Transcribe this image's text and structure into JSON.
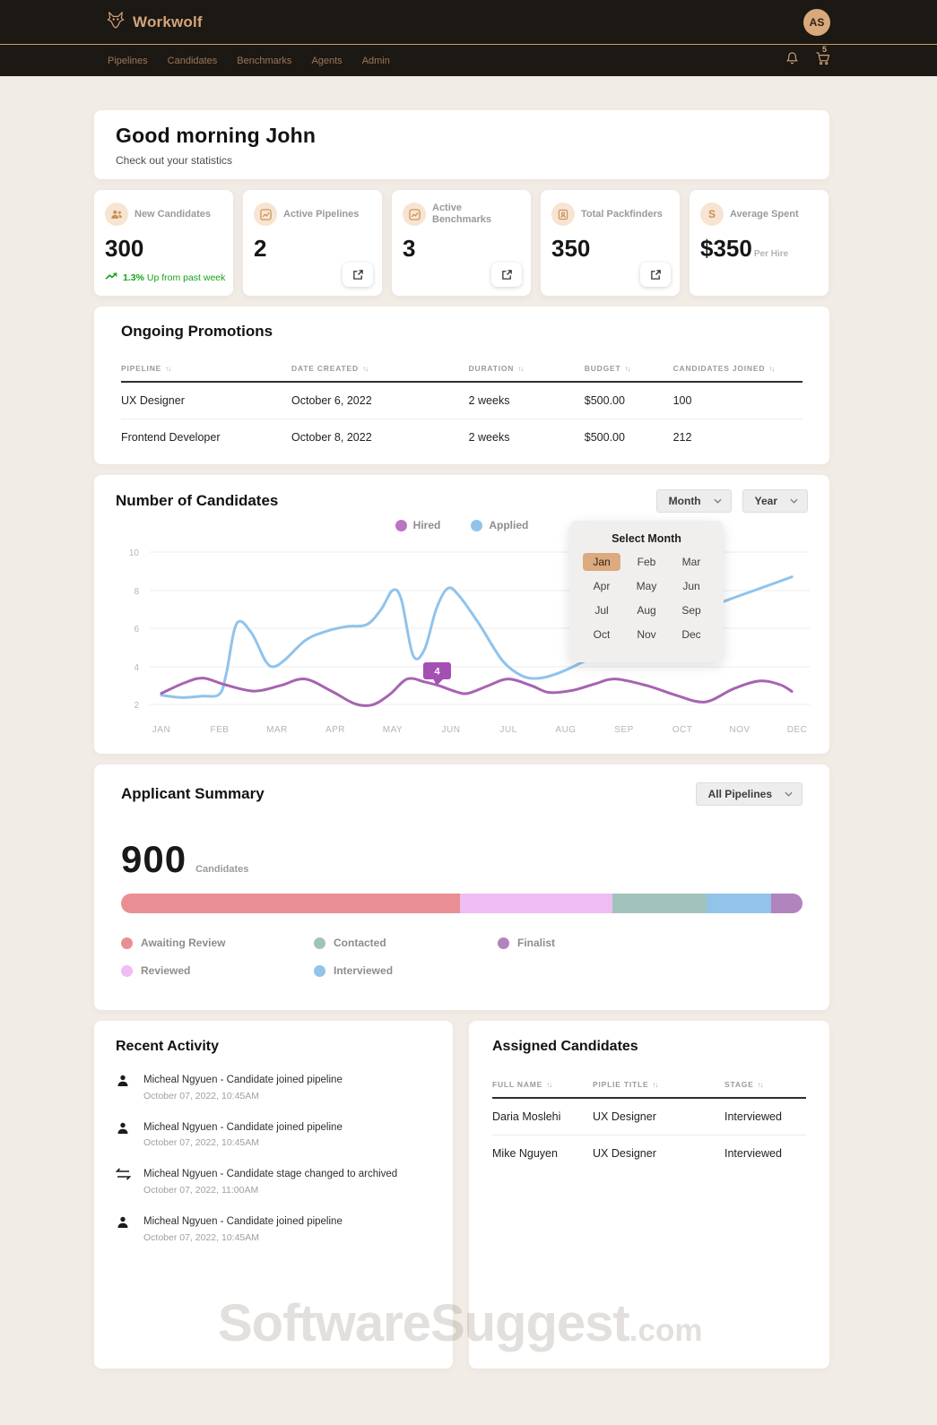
{
  "header": {
    "brand": "Workwolf",
    "avatar_initials": "AS",
    "nav_items": [
      "Pipelines",
      "Candidates",
      "Benchmarks",
      "Agents",
      "Admin"
    ],
    "cart_badge": "5"
  },
  "icons": {
    "sort": "↑↓"
  },
  "greeting": {
    "title": "Good morning John",
    "subtitle": "Check out your statistics"
  },
  "stats": [
    {
      "icon": "users-icon",
      "label": "New Candidates",
      "value": "300",
      "trend": "1.3%",
      "trend_text": "Up from past week"
    },
    {
      "icon": "chart-icon",
      "label": "Active Pipelines",
      "value": "2"
    },
    {
      "icon": "chart-icon",
      "label": "Active Benchmarks",
      "value": "3"
    },
    {
      "icon": "id-badge-icon",
      "label": "Total Packfinders",
      "value": "350"
    },
    {
      "icon": "dollar-icon",
      "label": "Average Spent",
      "value": "$350",
      "suffix": "Per Hire"
    }
  ],
  "promotions": {
    "title": "Ongoing Promotions",
    "columns": [
      "PIPELINE",
      "DATE CREATED",
      "DURATION",
      "BUDGET",
      "CANDIDATES JOINED"
    ],
    "rows": [
      [
        "UX Designer",
        "October 6, 2022",
        "2 weeks",
        "$500.00",
        "100"
      ],
      [
        "Frontend Developer",
        "October 8, 2022",
        "2 weeks",
        "$500.00",
        "212"
      ]
    ]
  },
  "chart": {
    "title": "Number of Candidates",
    "month_filter": "Month",
    "year_filter": "Year",
    "popup": {
      "title": "Select Month",
      "months": [
        "Jan",
        "Feb",
        "Mar",
        "Apr",
        "May",
        "Jun",
        "Jul",
        "Aug",
        "Sep",
        "Oct",
        "Nov",
        "Dec"
      ],
      "selected": "Jan"
    },
    "tooltip": {
      "label": "4",
      "color": "#a44fb4"
    }
  },
  "chart_data": {
    "type": "line",
    "title": "Number of Candidates",
    "x": [
      "JAN",
      "FEB",
      "MAR",
      "APR",
      "MAY",
      "JUN",
      "JUL",
      "AUG",
      "SEP",
      "OCT",
      "NOV",
      "DEC"
    ],
    "yticks": [
      "10",
      "8",
      "6",
      "4",
      "2"
    ],
    "ylim": [
      2,
      10
    ],
    "grid": true,
    "legend_position": "top-center",
    "series": [
      {
        "name": "Hired",
        "color": "#a763b1",
        "dot_color": "#bb74c4",
        "values": [
          2.6,
          3.3,
          2.8,
          3.2,
          2.4,
          2.9,
          3.3,
          2.7,
          3.3,
          2.4,
          3.2,
          2.7
        ],
        "curve": [
          [
            0,
            2.6
          ],
          [
            0.4,
            3.15
          ],
          [
            0.72,
            3.4
          ],
          [
            1.1,
            3.05
          ],
          [
            1.6,
            2.72
          ],
          [
            2.05,
            3.0
          ],
          [
            2.48,
            3.35
          ],
          [
            2.95,
            2.7
          ],
          [
            3.35,
            2.05
          ],
          [
            3.65,
            2.0
          ],
          [
            3.95,
            2.55
          ],
          [
            4.25,
            3.35
          ],
          [
            4.55,
            3.2
          ],
          [
            4.8,
            3.0
          ],
          [
            5.1,
            2.68
          ],
          [
            5.3,
            2.6
          ],
          [
            5.65,
            3.0
          ],
          [
            6.0,
            3.35
          ],
          [
            6.4,
            3.0
          ],
          [
            6.7,
            2.65
          ],
          [
            7.1,
            2.75
          ],
          [
            7.5,
            3.1
          ],
          [
            7.85,
            3.35
          ],
          [
            8.4,
            3.0
          ],
          [
            8.9,
            2.5
          ],
          [
            9.4,
            2.15
          ],
          [
            9.9,
            2.85
          ],
          [
            10.35,
            3.25
          ],
          [
            10.7,
            3.05
          ],
          [
            10.9,
            2.7
          ]
        ]
      },
      {
        "name": "Applied",
        "color": "#90c3eb",
        "dot_color": "#90c3eb",
        "values": [
          2.5,
          2.6,
          4.0,
          5.9,
          8.0,
          8.1,
          3.5,
          3.4,
          5.5,
          6.5,
          7.5,
          8.7
        ],
        "curve": [
          [
            0,
            2.5
          ],
          [
            0.35,
            2.38
          ],
          [
            0.7,
            2.45
          ],
          [
            1.0,
            2.55
          ],
          [
            1.12,
            3.6
          ],
          [
            1.3,
            6.25
          ],
          [
            1.55,
            5.8
          ],
          [
            1.8,
            4.3
          ],
          [
            1.95,
            4.0
          ],
          [
            2.15,
            4.4
          ],
          [
            2.5,
            5.4
          ],
          [
            2.85,
            5.85
          ],
          [
            3.2,
            6.1
          ],
          [
            3.55,
            6.2
          ],
          [
            3.8,
            7.0
          ],
          [
            4.0,
            8.0
          ],
          [
            4.15,
            7.5
          ],
          [
            4.35,
            4.6
          ],
          [
            4.55,
            4.9
          ],
          [
            4.75,
            7.0
          ],
          [
            4.95,
            8.1
          ],
          [
            5.15,
            7.7
          ],
          [
            5.5,
            6.2
          ],
          [
            5.9,
            4.3
          ],
          [
            6.25,
            3.5
          ],
          [
            6.55,
            3.4
          ],
          [
            6.9,
            3.7
          ],
          [
            7.4,
            4.4
          ],
          [
            8.0,
            5.2
          ],
          [
            8.6,
            6.0
          ],
          [
            9.2,
            6.8
          ],
          [
            9.8,
            7.5
          ],
          [
            10.4,
            8.15
          ],
          [
            10.9,
            8.7
          ]
        ]
      }
    ],
    "annotation": {
      "series": "Hired",
      "near_x": "JUN",
      "label": "4"
    }
  },
  "applicant_summary": {
    "title": "Applicant Summary",
    "filter": "All Pipelines",
    "total": "900",
    "total_label": "Candidates",
    "segments": [
      {
        "label": "Awaiting Review",
        "color": "#e98f94",
        "pct": 49.8
      },
      {
        "label": "Reviewed",
        "color": "#efbdf3",
        "pct": 22.3
      },
      {
        "label": "Contacted",
        "color": "#a2c3bc",
        "pct": 13.8
      },
      {
        "label": "Interviewed",
        "color": "#92c3e9",
        "pct": 9.5
      },
      {
        "label": "Finalist",
        "color": "#b183bf",
        "pct": 4.6
      }
    ]
  },
  "recent_activity": {
    "title": "Recent Activity",
    "items": [
      {
        "icon": "person-icon",
        "text": "Micheal Ngyuen - Candidate joined pipeline",
        "time": "October 07, 2022, 10:45AM"
      },
      {
        "icon": "person-icon",
        "text": "Micheal Ngyuen - Candidate joined pipeline",
        "time": "October 07, 2022, 10:45AM"
      },
      {
        "icon": "swap-icon",
        "text": "Micheal Ngyuen - Candidate stage changed to archived",
        "time": "October 07, 2022, 11:00AM"
      },
      {
        "icon": "person-icon",
        "text": "Micheal Ngyuen - Candidate joined pipeline",
        "time": "October 07, 2022, 10:45AM"
      }
    ]
  },
  "assigned": {
    "title": "Assigned Candidates",
    "columns": [
      "FULL NAME",
      "PIPLIE TITLE",
      "STAGE"
    ],
    "rows": [
      [
        "Daria Moslehi",
        "UX Designer",
        "Interviewed"
      ],
      [
        "Mike Nguyen",
        "UX Designer",
        "Interviewed"
      ]
    ]
  },
  "watermark": {
    "main": "SoftwareSuggest",
    "suffix": ".com"
  }
}
